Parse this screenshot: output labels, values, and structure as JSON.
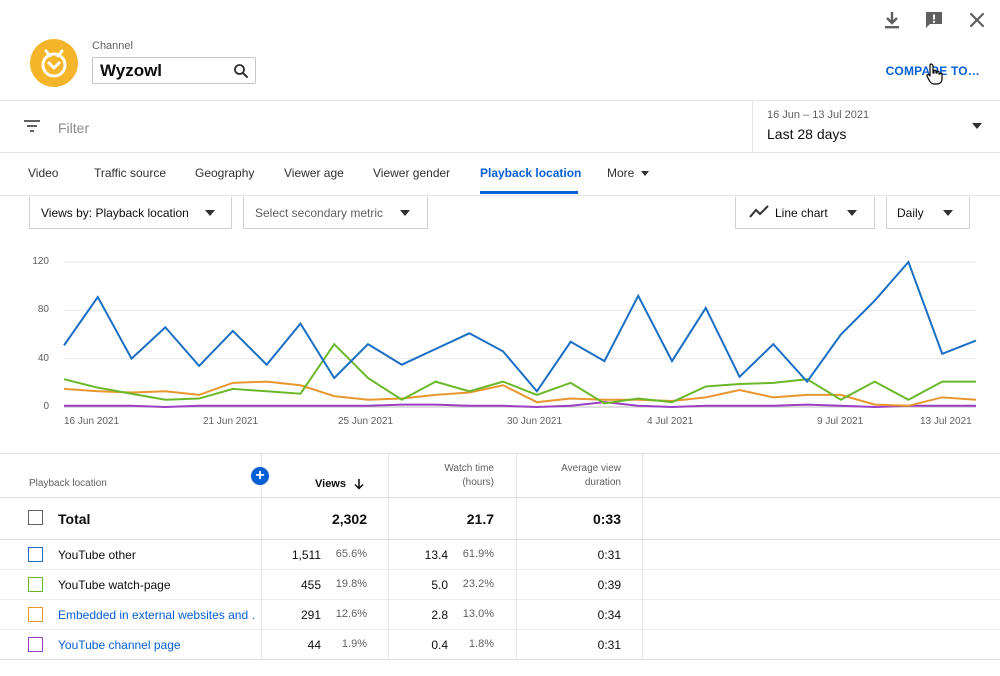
{
  "channel": {
    "label": "Channel",
    "name": "Wyzowl",
    "avatar_color": "#f5b52a"
  },
  "actions": {
    "compare_label": "COMPARE TO…",
    "icons": [
      "download-icon",
      "feedback-icon",
      "close-icon"
    ]
  },
  "filter": {
    "placeholder": "Filter"
  },
  "date": {
    "range": "16 Jun – 13 Jul 2021",
    "period": "Last 28 days"
  },
  "tabs": [
    {
      "label": "Video"
    },
    {
      "label": "Traffic source"
    },
    {
      "label": "Geography"
    },
    {
      "label": "Viewer age"
    },
    {
      "label": "Viewer gender"
    },
    {
      "label": "Playback location",
      "active": true
    },
    {
      "label": "More"
    }
  ],
  "controls": {
    "primary_metric": "Views by: Playback location",
    "secondary_metric": "Select secondary metric",
    "chart_type": "Line chart",
    "interval": "Daily"
  },
  "chart_data": {
    "type": "line",
    "ylim": [
      0,
      120
    ],
    "yticks": [
      "0",
      "40",
      "80",
      "120"
    ],
    "xtick_labels": [
      "16 Jun 2021",
      "21 Jun 2021",
      "25 Jun 2021",
      "30 Jun 2021",
      "4 Jul 2021",
      "9 Jul 2021",
      "13 Jul 2021"
    ],
    "x": [
      "16 Jun",
      "17 Jun",
      "18 Jun",
      "19 Jun",
      "20 Jun",
      "21 Jun",
      "22 Jun",
      "23 Jun",
      "24 Jun",
      "25 Jun",
      "26 Jun",
      "27 Jun",
      "28 Jun",
      "29 Jun",
      "30 Jun",
      "1 Jul",
      "2 Jul",
      "3 Jul",
      "4 Jul",
      "5 Jul",
      "6 Jul",
      "7 Jul",
      "8 Jul",
      "9 Jul",
      "10 Jul",
      "11 Jul",
      "12 Jul",
      "13 Jul"
    ],
    "grid": true,
    "series": [
      {
        "name": "YouTube other",
        "color": "#1a6fc4",
        "values": [
          51,
          91,
          40,
          66,
          34,
          63,
          35,
          69,
          24,
          52,
          35,
          48,
          61,
          46,
          13,
          54,
          38,
          92,
          38,
          82,
          25,
          52,
          21,
          60,
          88,
          120,
          44,
          55
        ]
      },
      {
        "name": "YouTube watch-page",
        "color": "#6ab82a",
        "values": [
          23,
          16,
          11,
          6,
          7,
          15,
          13,
          11,
          52,
          24,
          6,
          21,
          13,
          21,
          10,
          20,
          3,
          7,
          4,
          17,
          19,
          20,
          23,
          6,
          21,
          6,
          21,
          21
        ]
      },
      {
        "name": "Embedded in external websites and …",
        "color": "#e8962e",
        "values": [
          15,
          13,
          12,
          13,
          10,
          20,
          21,
          18,
          9,
          6,
          7,
          10,
          12,
          18,
          4,
          7,
          6,
          6,
          5,
          8,
          14,
          8,
          10,
          10,
          2,
          1,
          8,
          6
        ]
      },
      {
        "name": "YouTube channel page",
        "color": "#9b3fc4",
        "values": [
          1,
          1,
          1,
          0,
          1,
          1,
          1,
          1,
          1,
          1,
          2,
          2,
          1,
          1,
          0,
          1,
          4,
          1,
          0,
          1,
          1,
          1,
          2,
          1,
          0,
          1,
          1,
          1
        ]
      }
    ]
  },
  "table": {
    "headers": {
      "location": "Playback location",
      "views": "Views",
      "watch_line1": "Watch time",
      "watch_line2": "(hours)",
      "avg_line1": "Average view",
      "avg_line2": "duration"
    },
    "total": {
      "label": "Total",
      "views": "2,302",
      "watch": "21.7",
      "avg": "0:33"
    },
    "rows": [
      {
        "label": "YouTube other",
        "views": "1,511",
        "views_pct": "65.6%",
        "watch": "13.4",
        "watch_pct": "61.9%",
        "avg": "0:31",
        "color": "#1a6fc4",
        "link": false
      },
      {
        "label": "YouTube watch-page",
        "views": "455",
        "views_pct": "19.8%",
        "watch": "5.0",
        "watch_pct": "23.2%",
        "avg": "0:39",
        "color": "#6ab82a",
        "link": false
      },
      {
        "label": "Embedded in external websites and …",
        "views": "291",
        "views_pct": "12.6%",
        "watch": "2.8",
        "watch_pct": "13.0%",
        "avg": "0:34",
        "color": "#e8962e",
        "link": true
      },
      {
        "label": "YouTube channel page",
        "views": "44",
        "views_pct": "1.9%",
        "watch": "0.4",
        "watch_pct": "1.8%",
        "avg": "0:31",
        "color": "#9b3fc4",
        "link": true
      }
    ]
  }
}
